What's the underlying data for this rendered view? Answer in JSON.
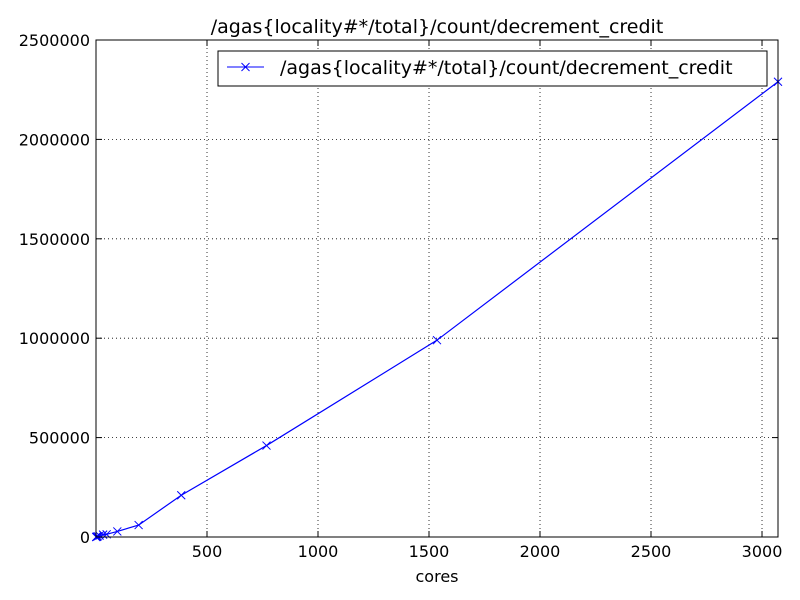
{
  "chart_data": {
    "type": "line",
    "title": "/agas{locality#*/total}/count/decrement_credit",
    "xlabel": "cores",
    "ylabel": "",
    "xlim": [
      0,
      3072
    ],
    "ylim": [
      0,
      2500000
    ],
    "xticks": [
      500,
      1000,
      1500,
      2000,
      2500,
      3000
    ],
    "yticks": [
      0,
      500000,
      1000000,
      1500000,
      2000000,
      2500000
    ],
    "grid": true,
    "legend_position": "top-right",
    "series": [
      {
        "name": "/agas{locality#*/total}/count/decrement_credit",
        "color": "#0000ff",
        "marker": "x",
        "x": [
          1,
          2,
          4,
          8,
          16,
          32,
          48,
          96,
          192,
          384,
          768,
          1536,
          3072
        ],
        "y": [
          0,
          500,
          1500,
          3500,
          6500,
          12000,
          13500,
          28000,
          60000,
          210000,
          460000,
          990000,
          2290000
        ]
      }
    ]
  }
}
